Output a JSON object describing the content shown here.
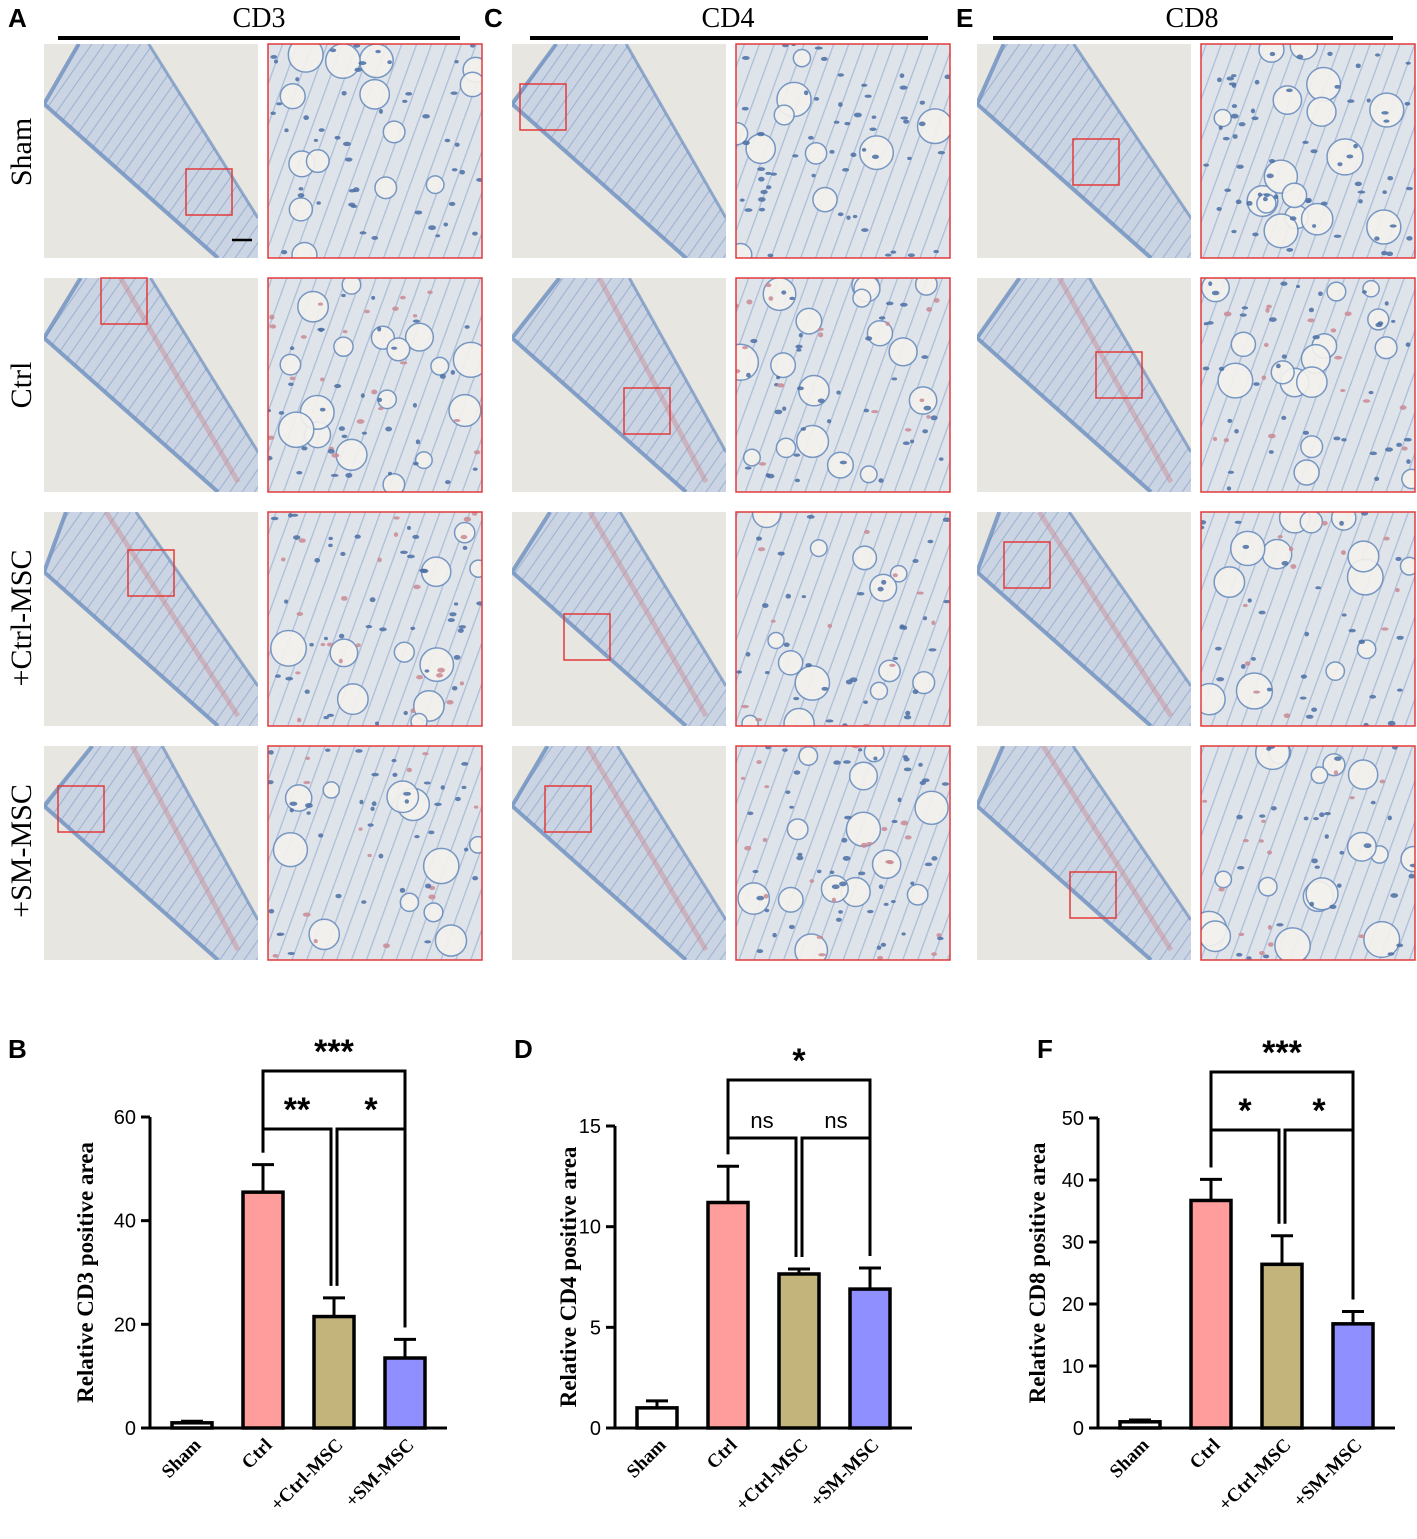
{
  "panel_letters": {
    "A": "A",
    "B": "B",
    "C": "C",
    "D": "D",
    "E": "E",
    "F": "F"
  },
  "columns": [
    {
      "marker": "CD3"
    },
    {
      "marker": "CD4"
    },
    {
      "marker": "CD8"
    }
  ],
  "rows": [
    "Sham",
    "Ctrl",
    "+Ctrl-MSC",
    "+SM-MSC"
  ],
  "colors": {
    "sham": "#ffffff",
    "ctrl": "#ff9d9c",
    "ctrl_msc": "#c2b47b",
    "sm_msc": "#8f8fff",
    "inset_border": "#e23a3a",
    "background_tissue": "#e8e6e1",
    "stain_blue": "#6c8fbf",
    "stain_red": "#c98a93"
  },
  "chart_data": [
    {
      "type": "bar",
      "panel": "B",
      "categories": [
        "Sham",
        "Ctrl",
        "+Ctrl-MSC",
        "+SM-MSC"
      ],
      "values": [
        1,
        45.5,
        21.5,
        13.5
      ],
      "errors": [
        0.3,
        5.3,
        3.6,
        3.6
      ],
      "ylabel": "Relative CD3 positive area",
      "ylim": [
        0,
        60
      ],
      "yticks": [
        0,
        20,
        40,
        60
      ],
      "comparisons": [
        {
          "from": 1,
          "to": 3,
          "label": "***"
        },
        {
          "from": 1,
          "to": 2,
          "label": "**"
        },
        {
          "from": 2,
          "to": 3,
          "label": "*"
        }
      ]
    },
    {
      "type": "bar",
      "panel": "D",
      "categories": [
        "Sham",
        "Ctrl",
        "+Ctrl-MSC",
        "+SM-MSC"
      ],
      "values": [
        1,
        11.2,
        7.65,
        6.9
      ],
      "errors": [
        0.35,
        1.8,
        0.25,
        1.05
      ],
      "ylabel": "Relative CD4 positive area",
      "ylim": [
        0,
        15
      ],
      "yticks": [
        0,
        5,
        10,
        15
      ],
      "comparisons": [
        {
          "from": 1,
          "to": 3,
          "label": "*"
        },
        {
          "from": 1,
          "to": 2,
          "label": "ns"
        },
        {
          "from": 2,
          "to": 3,
          "label": "ns"
        }
      ]
    },
    {
      "type": "bar",
      "panel": "F",
      "categories": [
        "Sham",
        "Ctrl",
        "+Ctrl-MSC",
        "+SM-MSC"
      ],
      "values": [
        1,
        36.7,
        26.4,
        16.8
      ],
      "errors": [
        0.3,
        3.4,
        4.6,
        2.0
      ],
      "ylabel": "Relative CD8 positive area",
      "ylim": [
        0,
        50
      ],
      "yticks": [
        0,
        10,
        20,
        30,
        40,
        50
      ],
      "comparisons": [
        {
          "from": 1,
          "to": 3,
          "label": "***"
        },
        {
          "from": 1,
          "to": 2,
          "label": "*"
        },
        {
          "from": 2,
          "to": 3,
          "label": "*"
        }
      ]
    }
  ]
}
